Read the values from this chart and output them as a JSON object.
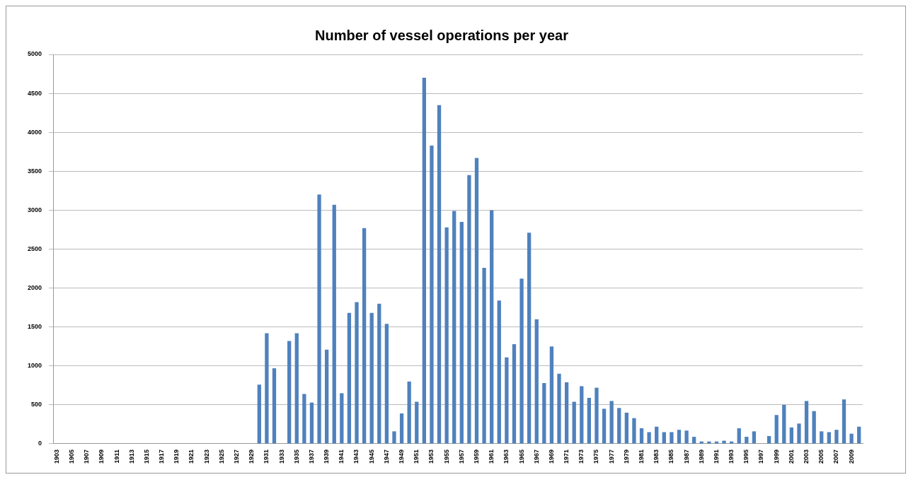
{
  "chart_data": {
    "type": "bar",
    "title": "Number of vessel operations per year",
    "categories": [
      "1903",
      null,
      "1905",
      null,
      "1907",
      null,
      "1909",
      null,
      "1911",
      null,
      "1913",
      null,
      "1915",
      null,
      "1917",
      null,
      "1919",
      null,
      "1921",
      null,
      "1923",
      null,
      "1925",
      null,
      "1927",
      null,
      "1929",
      null,
      "1931",
      null,
      "1933",
      null,
      "1935",
      null,
      "1937",
      null,
      "1939",
      null,
      "1941",
      null,
      "1943",
      null,
      "1945",
      null,
      "1947",
      null,
      "1949",
      null,
      "1951",
      null,
      "1953",
      null,
      "1955",
      null,
      "1957",
      null,
      "1959",
      null,
      "1961",
      null,
      "1963",
      null,
      "1965",
      null,
      "1967",
      null,
      "1969",
      null,
      "1971",
      null,
      "1973",
      null,
      "1975",
      null,
      "1977",
      null,
      "1979",
      null,
      "1981",
      null,
      "1983",
      null,
      "1985",
      null,
      "1987",
      null,
      "1989",
      null,
      "1991",
      null,
      "1993",
      null,
      "1995",
      null,
      "1997",
      null,
      "1999",
      null,
      "2001",
      null,
      "2003",
      null,
      "2005",
      null,
      "2007",
      null,
      "2009",
      null
    ],
    "values": [
      0,
      0,
      0,
      0,
      0,
      0,
      0,
      0,
      0,
      0,
      0,
      0,
      0,
      0,
      0,
      0,
      0,
      0,
      0,
      0,
      0,
      0,
      0,
      0,
      0,
      0,
      0,
      760,
      1420,
      970,
      0,
      1320,
      1420,
      640,
      530,
      3200,
      1210,
      3070,
      650,
      1680,
      1820,
      2770,
      1680,
      1800,
      1540,
      160,
      390,
      800,
      540,
      4700,
      3830,
      4350,
      2780,
      2990,
      2850,
      3450,
      3670,
      2260,
      3000,
      1840,
      1110,
      1280,
      2120,
      2710,
      1600,
      780,
      1250,
      900,
      790,
      540,
      740,
      590,
      720,
      450,
      550,
      460,
      400,
      330,
      200,
      150,
      220,
      150,
      150,
      180,
      170,
      90,
      30,
      30,
      30,
      40,
      30,
      200,
      90,
      160,
      0,
      100,
      370,
      500,
      210,
      260,
      550,
      420,
      160,
      150,
      180,
      570,
      130,
      220
    ],
    "color": "#4f81bd",
    "ylim": [
      0,
      5000
    ],
    "yticks": [
      0,
      500,
      1000,
      1500,
      2000,
      2500,
      3000,
      3500,
      4000,
      4500,
      5000
    ],
    "grid": "y",
    "legend": false
  }
}
